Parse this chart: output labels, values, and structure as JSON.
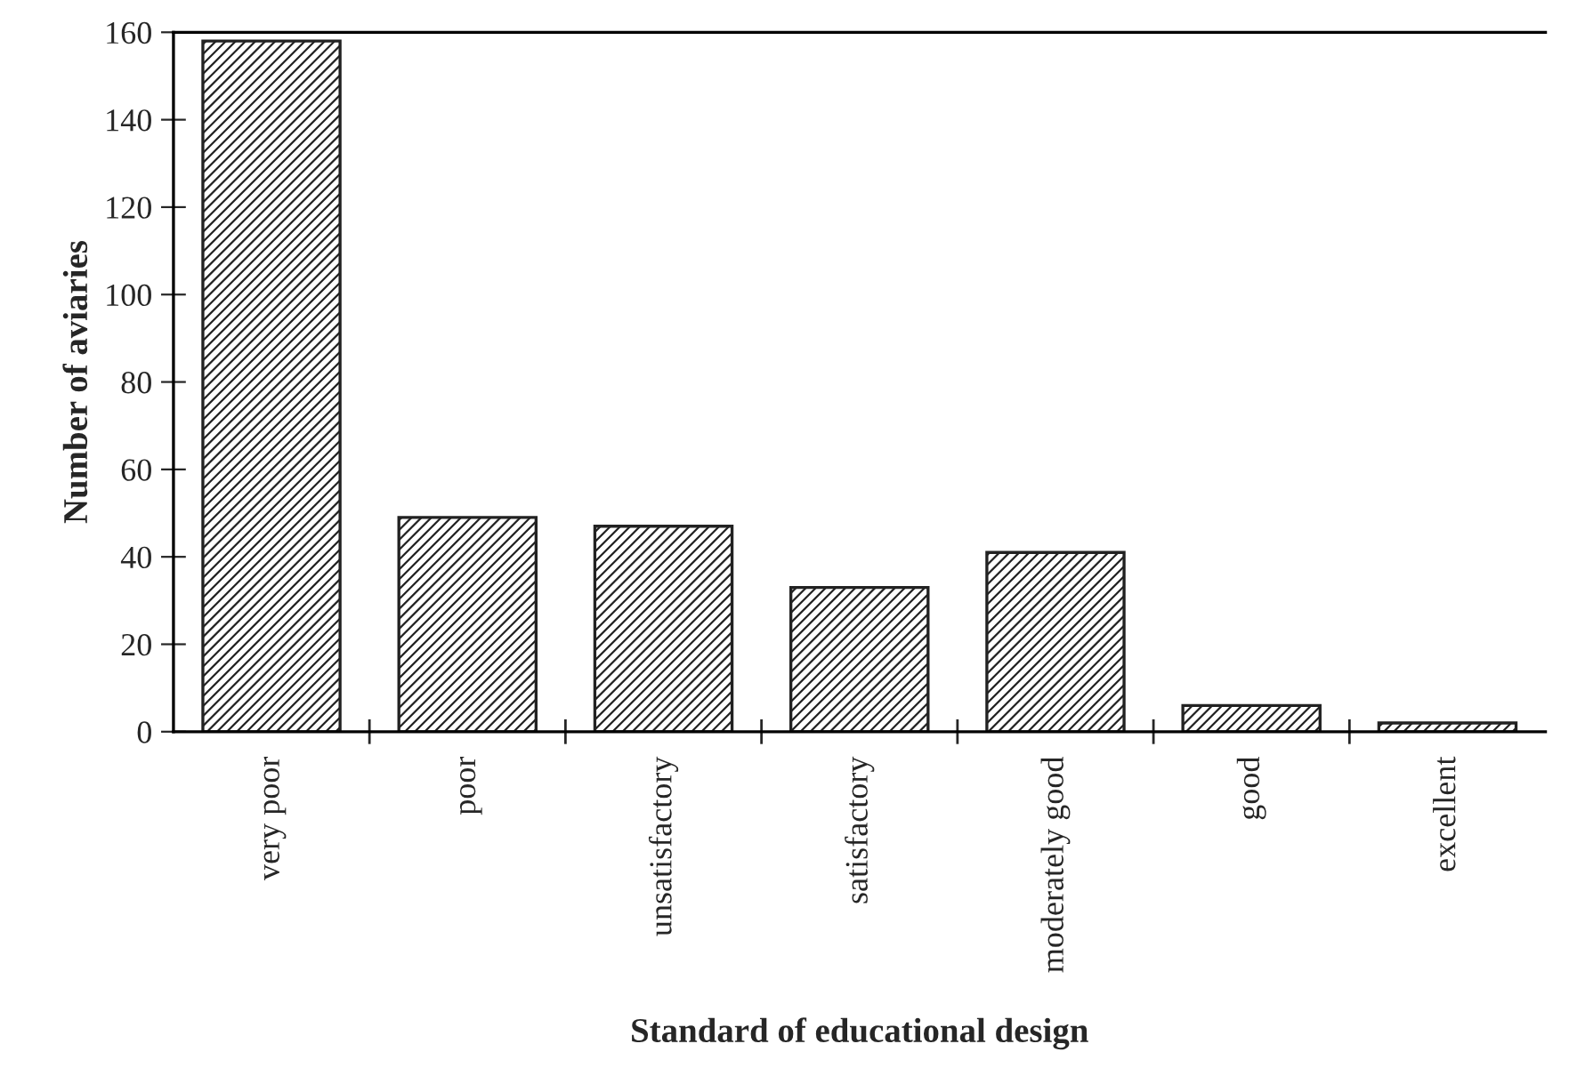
{
  "chart_data": {
    "type": "bar",
    "xlabel": "Standard of educational design",
    "ylabel": "Number of aviaries",
    "categories": [
      "very poor",
      "poor",
      "unsatisfactory",
      "satisfactory",
      "moderately good",
      "good",
      "excellent"
    ],
    "values": [
      158,
      49,
      47,
      33,
      41,
      6,
      2
    ],
    "color": "#222222",
    "ylim": [
      0,
      160
    ],
    "yticks": [
      0,
      20,
      40,
      60,
      80,
      100,
      120,
      140,
      160
    ],
    "grid": false,
    "legend": false
  }
}
